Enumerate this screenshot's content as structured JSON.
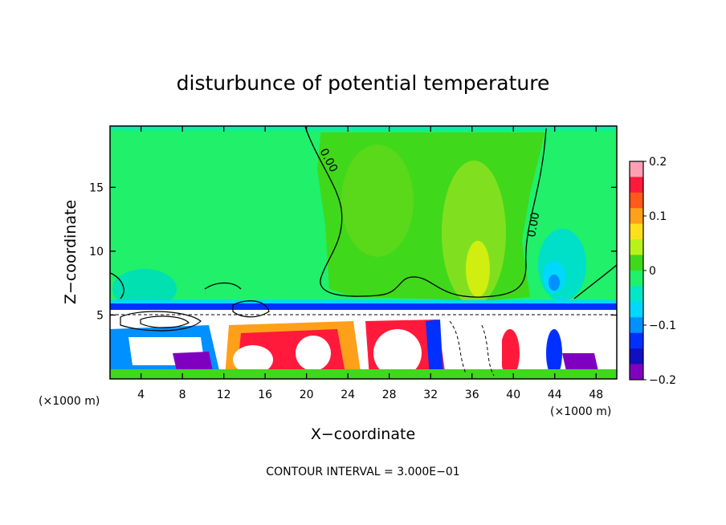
{
  "chart_data": {
    "type": "heatmap",
    "title": "disturbunce of potential temperature",
    "xlabel": "X−coordinate",
    "ylabel": "Z−coordinate",
    "xlim": [
      1,
      50
    ],
    "ylim": [
      0,
      19.8
    ],
    "x_ticks": [
      "4",
      "8",
      "12",
      "16",
      "20",
      "24",
      "28",
      "32",
      "36",
      "40",
      "44",
      "48"
    ],
    "x_tick_values": [
      4,
      8,
      12,
      16,
      20,
      24,
      28,
      32,
      36,
      40,
      44,
      48
    ],
    "y_ticks": [
      "5",
      "10",
      "15"
    ],
    "y_tick_values": [
      5,
      10,
      15
    ],
    "x_unit_left": "(×1000 m)",
    "x_unit_right": "(×1000 m)",
    "footer": "CONTOUR INTERVAL = 3.000E−01",
    "contour_labels": [
      "0.00",
      "0.00"
    ],
    "colorbar": {
      "ticks": [
        "0.2",
        "0.1",
        "0",
        "−0.1",
        "−0.2"
      ],
      "tick_values": [
        0.2,
        0.1,
        0,
        -0.1,
        -0.2
      ],
      "range": [
        -0.2,
        0.2
      ],
      "colors": [
        "#ff9fb3",
        "#ff1a3c",
        "#ff5a1a",
        "#ffa01a",
        "#ffe01a",
        "#b8f21a",
        "#40d81a",
        "#20f06a",
        "#00e8c8",
        "#00d8ff",
        "#0090ff",
        "#0030ff",
        "#1010c0",
        "#8000c0"
      ]
    },
    "grid": false,
    "legend": "colorbar-right"
  }
}
